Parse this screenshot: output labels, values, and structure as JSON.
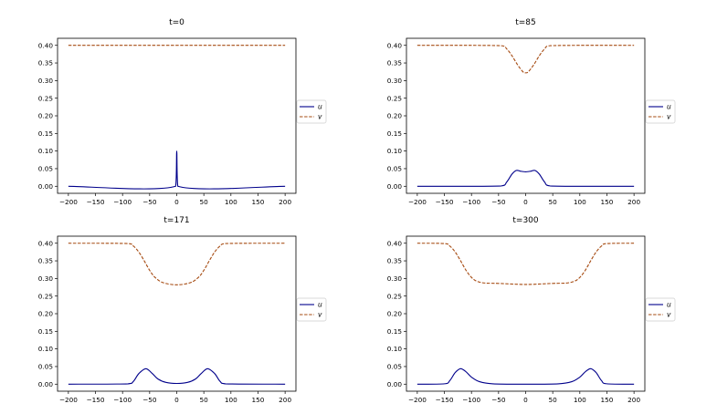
{
  "colors": {
    "u": "#00008b",
    "v": "#a64b12"
  },
  "chart_data": [
    {
      "type": "line",
      "title": "t=0",
      "xlim": [
        -220,
        220
      ],
      "ylim": [
        -0.02,
        0.42
      ],
      "xticks": [
        -200,
        -150,
        -100,
        -50,
        0,
        50,
        100,
        150,
        200
      ],
      "yticks": [
        0.0,
        0.05,
        0.1,
        0.15,
        0.2,
        0.25,
        0.3,
        0.35,
        0.4
      ],
      "legend": {
        "placement": "center-right-outside",
        "entries": [
          "u",
          "v"
        ]
      },
      "series": [
        {
          "name": "u",
          "style": "solid",
          "x": [
            -200,
            -2,
            0,
            2,
            200
          ],
          "y": [
            0,
            0,
            0.1,
            0,
            0
          ]
        },
        {
          "name": "v",
          "style": "dashed",
          "x": [
            -200,
            200
          ],
          "y": [
            0.4,
            0.4
          ]
        }
      ]
    },
    {
      "type": "line",
      "title": "t=85",
      "xlim": [
        -220,
        220
      ],
      "ylim": [
        -0.02,
        0.42
      ],
      "xticks": [
        -200,
        -150,
        -100,
        -50,
        0,
        50,
        100,
        150,
        200
      ],
      "yticks": [
        0.0,
        0.05,
        0.1,
        0.15,
        0.2,
        0.25,
        0.3,
        0.35,
        0.4
      ],
      "legend": {
        "placement": "center-right-outside",
        "entries": [
          "u",
          "v"
        ]
      },
      "series": [
        {
          "name": "u",
          "style": "solid",
          "x": [
            -200,
            -45,
            -35,
            -25,
            -17,
            -10,
            0,
            10,
            17,
            25,
            35,
            45,
            200
          ],
          "y": [
            0,
            0.001,
            0.012,
            0.035,
            0.045,
            0.043,
            0.041,
            0.043,
            0.045,
            0.035,
            0.012,
            0.001,
            0
          ]
        },
        {
          "name": "v",
          "style": "dashed",
          "x": [
            -200,
            -45,
            -35,
            -25,
            -15,
            -5,
            0,
            5,
            15,
            25,
            35,
            45,
            200
          ],
          "y": [
            0.4,
            0.399,
            0.39,
            0.37,
            0.345,
            0.325,
            0.322,
            0.325,
            0.345,
            0.37,
            0.39,
            0.399,
            0.4
          ]
        }
      ]
    },
    {
      "type": "line",
      "title": "t=171",
      "xlim": [
        -220,
        220
      ],
      "ylim": [
        -0.02,
        0.42
      ],
      "xticks": [
        -200,
        -150,
        -100,
        -50,
        0,
        50,
        100,
        150,
        200
      ],
      "yticks": [
        0.0,
        0.05,
        0.1,
        0.15,
        0.2,
        0.25,
        0.3,
        0.35,
        0.4
      ],
      "legend": {
        "placement": "center-right-outside",
        "entries": [
          "u",
          "v"
        ]
      },
      "series": [
        {
          "name": "u",
          "style": "solid",
          "x": [
            -200,
            -90,
            -80,
            -70,
            -57,
            -45,
            -35,
            -20,
            0,
            20,
            35,
            45,
            57,
            70,
            80,
            90,
            200
          ],
          "y": [
            0,
            0.001,
            0.008,
            0.03,
            0.044,
            0.03,
            0.015,
            0.005,
            0.002,
            0.005,
            0.015,
            0.03,
            0.044,
            0.03,
            0.008,
            0.001,
            0
          ]
        },
        {
          "name": "v",
          "style": "dashed",
          "x": [
            -200,
            -90,
            -80,
            -70,
            -60,
            -50,
            -40,
            -25,
            0,
            25,
            40,
            50,
            60,
            70,
            80,
            90,
            200
          ],
          "y": [
            0.4,
            0.399,
            0.392,
            0.375,
            0.35,
            0.323,
            0.303,
            0.288,
            0.282,
            0.288,
            0.303,
            0.323,
            0.35,
            0.375,
            0.392,
            0.399,
            0.4
          ]
        }
      ]
    },
    {
      "type": "line",
      "title": "t=300",
      "xlim": [
        -220,
        220
      ],
      "ylim": [
        -0.02,
        0.42
      ],
      "xticks": [
        -200,
        -150,
        -100,
        -50,
        0,
        50,
        100,
        150,
        200
      ],
      "yticks": [
        0.0,
        0.05,
        0.1,
        0.15,
        0.2,
        0.25,
        0.3,
        0.35,
        0.4
      ],
      "legend": {
        "placement": "center-right-outside",
        "entries": [
          "u",
          "v"
        ]
      },
      "series": [
        {
          "name": "u",
          "style": "solid",
          "x": [
            -200,
            -150,
            -140,
            -130,
            -120,
            -110,
            -100,
            -85,
            -60,
            0,
            60,
            85,
            100,
            110,
            120,
            130,
            140,
            150,
            200
          ],
          "y": [
            0,
            0.001,
            0.01,
            0.033,
            0.044,
            0.035,
            0.02,
            0.007,
            0.001,
            0,
            0.001,
            0.007,
            0.02,
            0.035,
            0.044,
            0.033,
            0.01,
            0.001,
            0
          ]
        },
        {
          "name": "v",
          "style": "dashed",
          "x": [
            -200,
            -150,
            -140,
            -130,
            -120,
            -110,
            -100,
            -90,
            -75,
            -50,
            0,
            50,
            75,
            90,
            100,
            110,
            120,
            130,
            140,
            150,
            200
          ],
          "y": [
            0.4,
            0.399,
            0.392,
            0.375,
            0.35,
            0.323,
            0.303,
            0.292,
            0.287,
            0.286,
            0.283,
            0.286,
            0.287,
            0.292,
            0.303,
            0.323,
            0.35,
            0.375,
            0.392,
            0.399,
            0.4
          ]
        }
      ]
    }
  ]
}
